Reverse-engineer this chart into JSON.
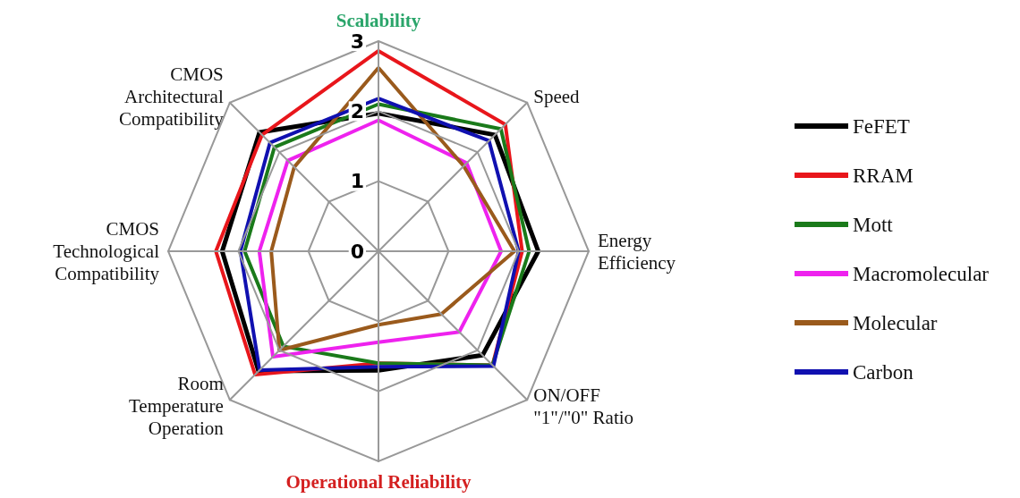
{
  "chart_data": {
    "type": "radar",
    "categories": [
      "Scalability",
      "Speed",
      "Energy\nEfficiency",
      "ON/OFF\n\"1\"/\"0\" Ratio",
      "Operational Reliability",
      "Room\nTemperature\nOperation",
      "CMOS\nTechnological\nCompatibility",
      "CMOS\nArchitectural\nCompatibility"
    ],
    "ylim": [
      0,
      3
    ],
    "yticks": [
      0,
      1,
      2,
      3
    ],
    "legend": "right",
    "grid": true,
    "series": [
      {
        "name": "FeFET",
        "color": "#000000",
        "values": [
          1.97,
          2.35,
          2.28,
          2.1,
          1.7,
          2.42,
          2.23,
          2.4
        ]
      },
      {
        "name": "RRAM",
        "color": "#e8161b",
        "values": [
          2.86,
          2.56,
          2.05,
          2.3,
          1.6,
          2.49,
          2.32,
          2.35
        ]
      },
      {
        "name": "Mott",
        "color": "#1a7a1a",
        "values": [
          2.1,
          2.47,
          2.15,
          2.3,
          1.6,
          1.92,
          1.91,
          2.1
        ]
      },
      {
        "name": "Macromolecular",
        "color": "#ee22ee",
        "values": [
          1.87,
          1.78,
          1.75,
          1.63,
          1.3,
          2.13,
          1.7,
          1.83
        ]
      },
      {
        "name": "Molecular",
        "color": "#9a5a1c",
        "values": [
          2.62,
          1.72,
          1.94,
          1.27,
          1.05,
          2.0,
          1.53,
          1.7
        ]
      },
      {
        "name": "Carbon",
        "color": "#1010b0",
        "values": [
          2.18,
          2.23,
          2.0,
          2.32,
          1.65,
          2.4,
          1.97,
          2.19
        ]
      }
    ]
  }
}
